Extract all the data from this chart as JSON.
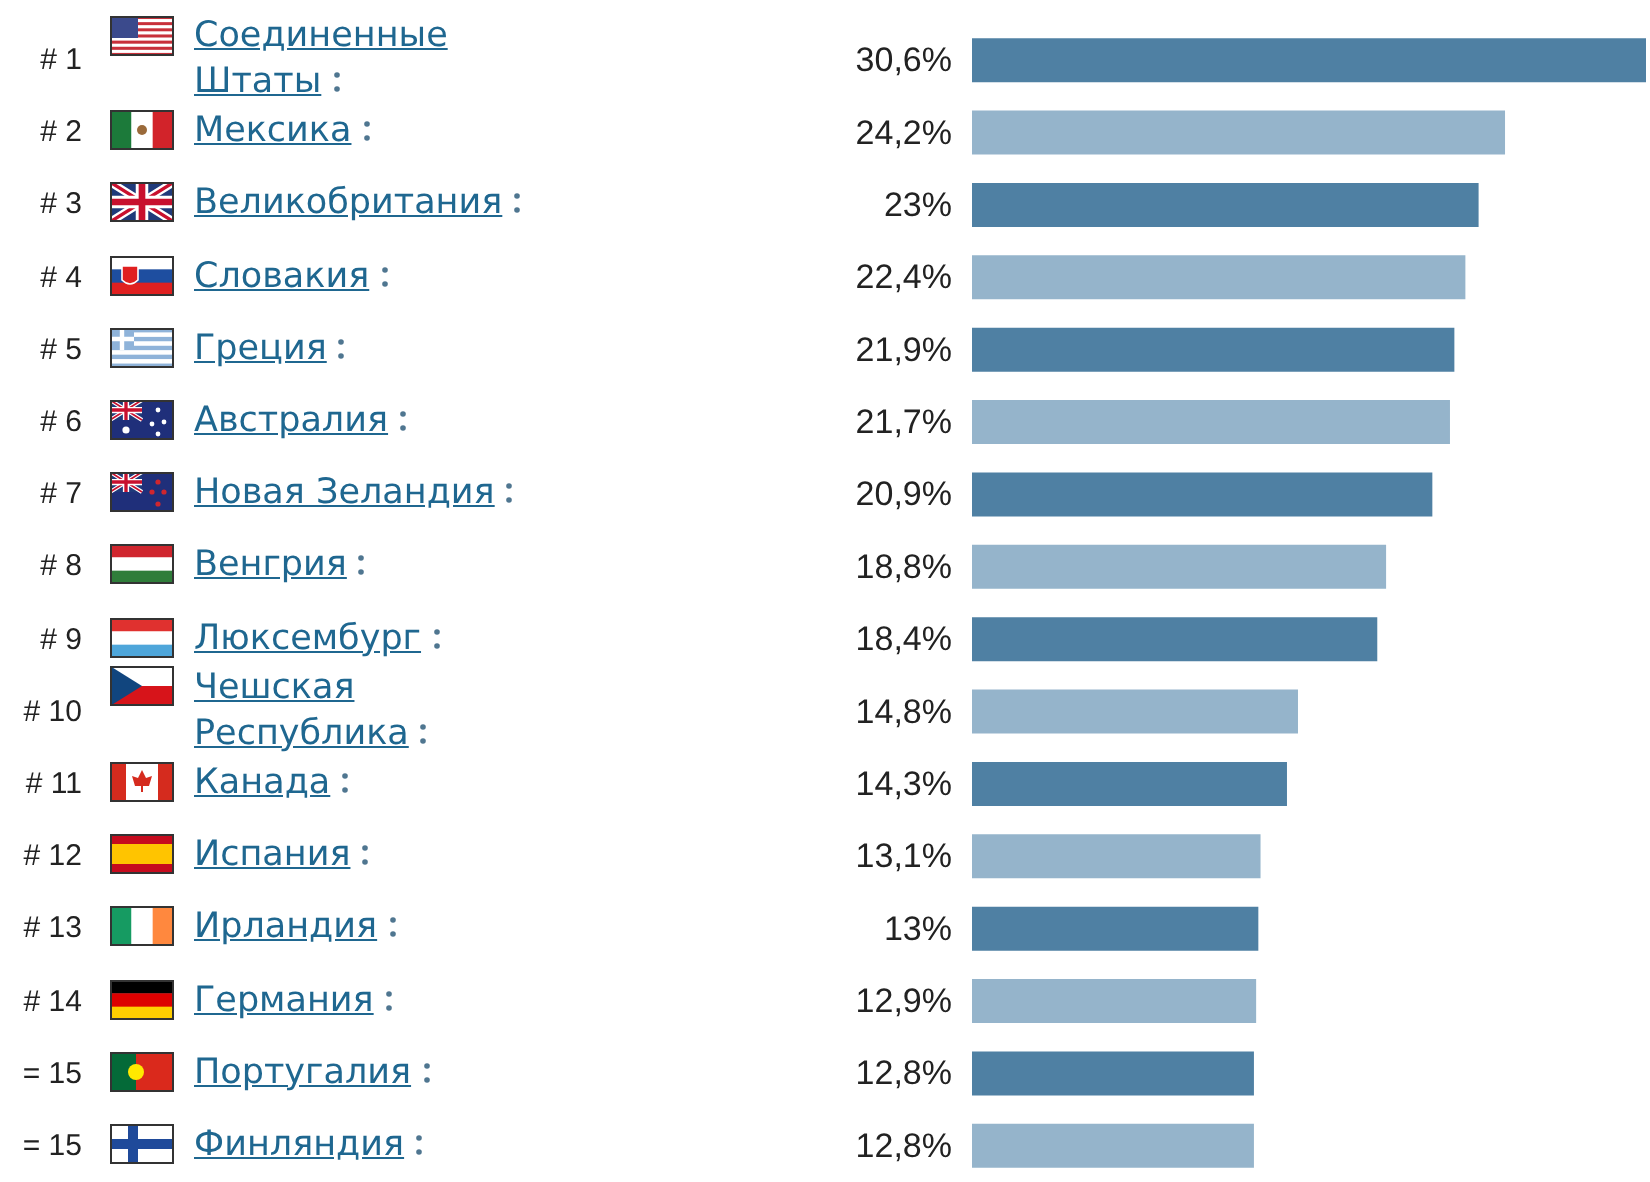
{
  "chart_data": {
    "type": "bar",
    "orientation": "horizontal",
    "categories": [
      "Соединенные Штаты",
      "Мексика",
      "Великобритания",
      "Словакия",
      "Греция",
      "Австралия",
      "Новая Зеландия",
      "Венгрия",
      "Люксембург",
      "Чешская Республика",
      "Канада",
      "Испания",
      "Ирландия",
      "Германия",
      "Португалия",
      "Финляндия"
    ],
    "values": [
      30.6,
      24.2,
      23,
      22.4,
      21.9,
      21.7,
      20.9,
      18.8,
      18.4,
      14.8,
      14.3,
      13.1,
      13,
      12.9,
      12.8,
      12.8
    ],
    "value_labels": [
      "30,6%",
      "24,2%",
      "23%",
      "22,4%",
      "21,9%",
      "21,7%",
      "20,9%",
      "18,8%",
      "18,4%",
      "14,8%",
      "14,3%",
      "13,1%",
      "13%",
      "12,9%",
      "12,8%",
      "12,8%"
    ],
    "colors": [
      "#4f80a3",
      "#95b4cb",
      "#4f80a3",
      "#95b4cb",
      "#4f80a3",
      "#95b4cb",
      "#4f80a3",
      "#95b4cb",
      "#4f80a3",
      "#95b4cb",
      "#4f80a3",
      "#95b4cb",
      "#4f80a3",
      "#95b4cb",
      "#4f80a3",
      "#95b4cb"
    ],
    "annotations": [
      "# 1",
      "# 2",
      "# 3",
      "# 4",
      "# 5",
      "# 6",
      "# 7",
      "# 8",
      "# 9",
      "# 10",
      "# 11",
      "# 12",
      "# 13",
      "# 14",
      "= 15",
      "= 15"
    ]
  }
}
